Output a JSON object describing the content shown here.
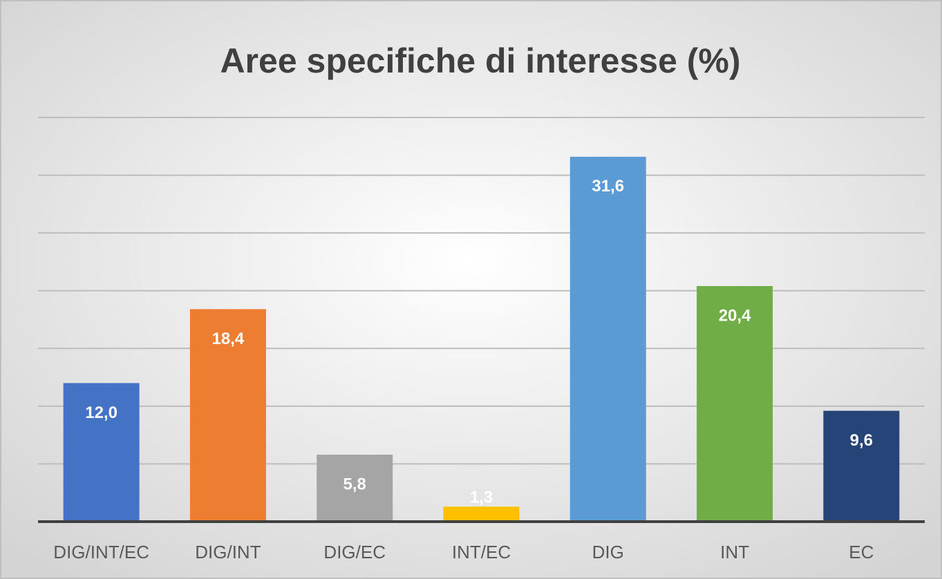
{
  "chart_data": {
    "type": "bar",
    "title": "Aree specifiche di interesse (%)",
    "categories": [
      "DIG/INT/EC",
      "DIG/INT",
      "DIG/EC",
      "INT/EC",
      "DIG",
      "INT",
      "EC"
    ],
    "values": [
      12.0,
      18.4,
      5.8,
      1.3,
      31.6,
      20.4,
      9.6
    ],
    "value_labels": [
      "12,0",
      "18,4",
      "5,8",
      "1,3",
      "31,6",
      "20,4",
      "9,6"
    ],
    "colors": [
      "#4472c4",
      "#ed7d31",
      "#a5a5a5",
      "#ffc000",
      "#5b9bd5",
      "#70ad47",
      "#264478"
    ],
    "ylim": [
      0,
      35
    ],
    "yticks": [
      0,
      5,
      10,
      15,
      20,
      25,
      30,
      35
    ],
    "grid": true
  }
}
